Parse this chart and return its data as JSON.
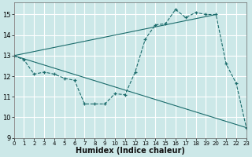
{
  "background_color": "#cce8e8",
  "grid_color": "#ffffff",
  "line_color": "#1a6b6b",
  "xlabel": "Humidex (Indice chaleur)",
  "xlim": [
    0,
    23
  ],
  "ylim": [
    9,
    15.6
  ],
  "yticks": [
    9,
    10,
    11,
    12,
    13,
    14,
    15
  ],
  "xticks": [
    0,
    1,
    2,
    3,
    4,
    5,
    6,
    7,
    8,
    9,
    10,
    11,
    12,
    13,
    14,
    15,
    16,
    17,
    18,
    19,
    20,
    21,
    22,
    23
  ],
  "series": [
    {
      "name": "humidex_curve",
      "x": [
        0,
        1,
        2,
        3,
        4,
        5,
        6,
        7,
        8,
        9,
        10,
        11,
        12,
        13,
        14,
        15,
        16,
        17,
        18,
        19,
        20,
        21,
        22,
        23
      ],
      "y": [
        13.0,
        12.8,
        12.1,
        12.2,
        12.1,
        11.9,
        11.8,
        10.65,
        10.65,
        10.65,
        11.15,
        11.1,
        12.2,
        13.8,
        14.5,
        14.55,
        15.25,
        14.85,
        15.1,
        15.0,
        15.0,
        12.6,
        11.65,
        9.5
      ],
      "style": "dashed",
      "marker": "+"
    },
    {
      "name": "trend_down",
      "x": [
        0,
        23
      ],
      "y": [
        13.0,
        9.5
      ],
      "style": "solid",
      "marker": null
    },
    {
      "name": "trend_up",
      "x": [
        0,
        20
      ],
      "y": [
        13.0,
        15.0
      ],
      "style": "solid",
      "marker": null
    }
  ]
}
